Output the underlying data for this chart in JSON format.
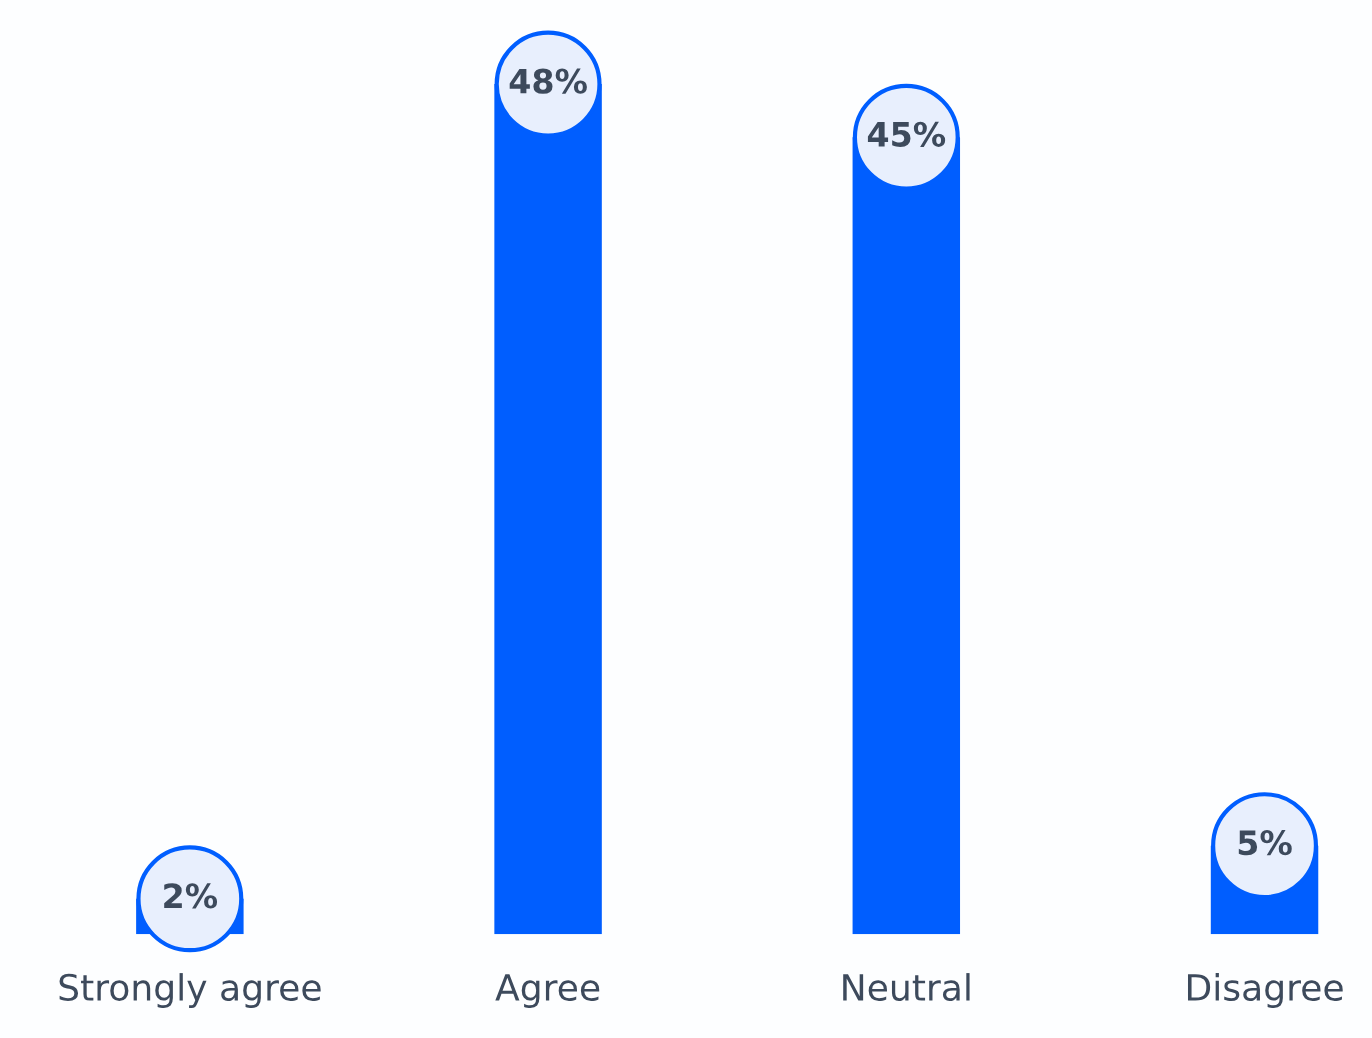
{
  "chart_data": {
    "type": "bar",
    "categories": [
      "Strongly agree",
      "Agree",
      "Neutral",
      "Disagree"
    ],
    "values": [
      2,
      48,
      45,
      5
    ],
    "color": "#005eff",
    "value_labels": [
      "2%",
      "48%",
      "45%",
      "5%"
    ]
  }
}
